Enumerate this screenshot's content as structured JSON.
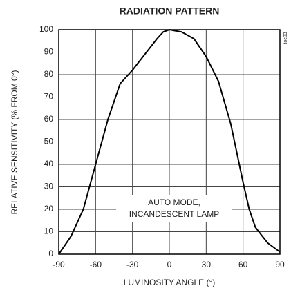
{
  "chart_data": {
    "type": "line",
    "title": "RADIATION PATTERN",
    "xlabel": "LUMINOSITY ANGLE (°)",
    "ylabel": "RELATIVE SENSITIVITY (% FROM 0°)",
    "annotation": [
      "AUTO MODE,",
      "INCANDESCENT LAMP"
    ],
    "tag": "toc03",
    "x": [
      -90,
      -80,
      -70,
      -60,
      -50,
      -40,
      -35,
      -30,
      -20,
      -10,
      -5,
      0,
      10,
      20,
      30,
      40,
      50,
      55,
      60,
      65,
      70,
      80,
      90
    ],
    "series": [
      {
        "name": "sensitivity",
        "color": "#000000",
        "values": [
          0,
          8,
          20,
          40,
          60,
          76,
          79,
          82,
          89,
          96,
          99,
          100,
          99,
          96,
          88,
          77,
          58,
          45,
          32,
          20,
          12,
          5,
          1
        ]
      }
    ],
    "xlim": [
      -90,
      90
    ],
    "xticks": [
      -90,
      -60,
      -30,
      0,
      30,
      60,
      90
    ],
    "ylim": [
      0,
      100
    ],
    "yticks": [
      0,
      10,
      20,
      30,
      40,
      50,
      60,
      70,
      80,
      90,
      100
    ],
    "grid": true
  }
}
